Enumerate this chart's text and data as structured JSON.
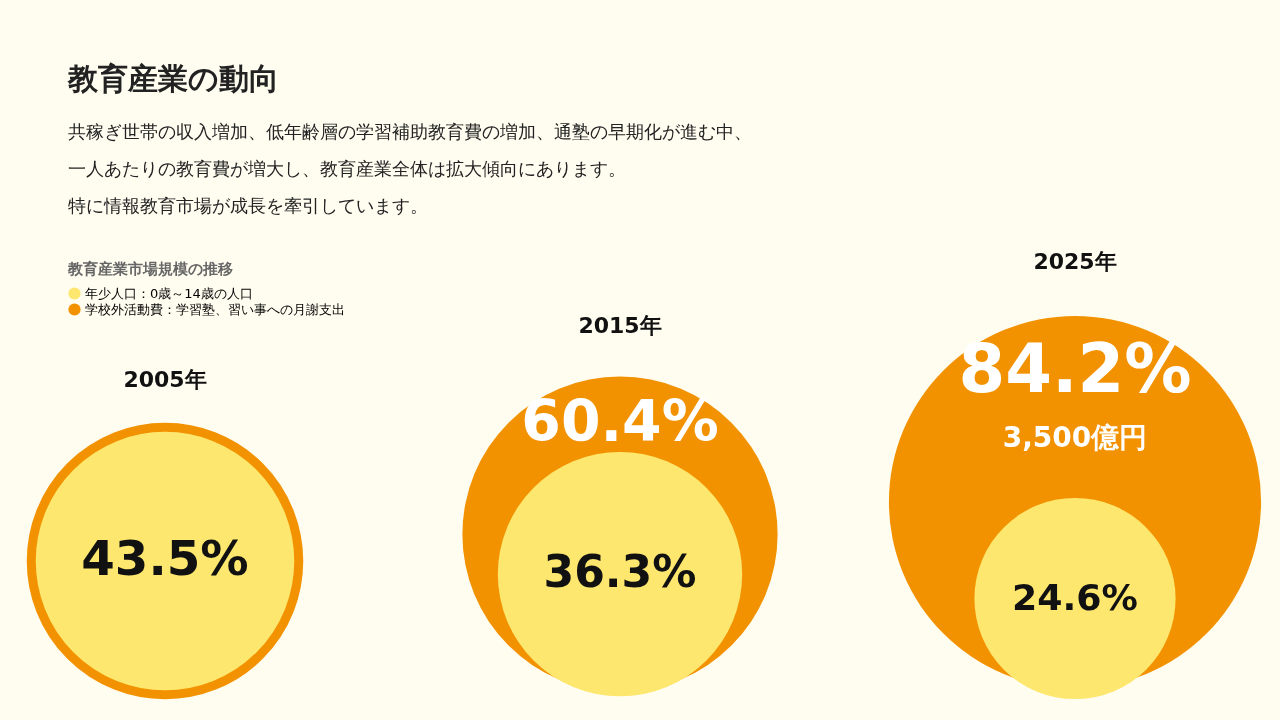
{
  "chart_data": {
    "type": "other",
    "title": "教育産業の動向",
    "subtitle": "共稼ぎ世帯の収入増加、低年齢層の学習補助教育費の増加、通塾の早期化が進む中、一人あたりの教育費が増大し、教育産業全体は拡大傾向にあります。特に情報教育市場が成長を牽引しています。",
    "legend_title": "教育産業市場規模の推移",
    "legend": "top left",
    "categories": [
      "2005年",
      "2015年",
      "2025年"
    ],
    "series": [
      {
        "name": "年少人口：0歳～14歳の人口",
        "color": "#fde76e",
        "values": [
          43.5,
          36.3,
          24.6
        ],
        "value_labels": [
          "43.5%",
          "36.3%",
          "24.6%"
        ]
      },
      {
        "name": "学校外活動費：学習塾、習い事への月謝支出",
        "color": "#f39200",
        "values": [
          null,
          60.4,
          84.2
        ],
        "value_labels": [
          null,
          "60.4%",
          "84.2%"
        ]
      }
    ],
    "annotations": [
      {
        "text": "3,500億円",
        "x": "2025年"
      }
    ]
  }
}
